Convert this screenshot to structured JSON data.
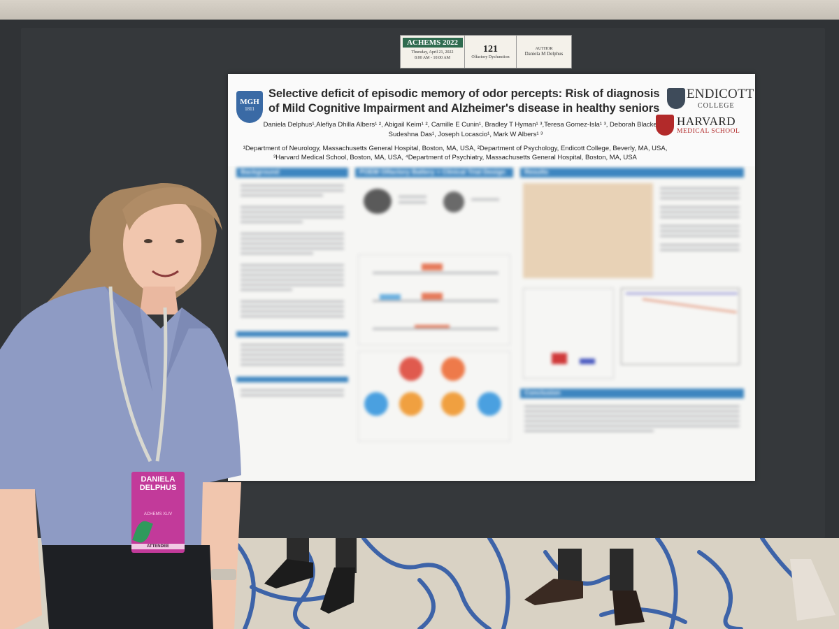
{
  "placard": {
    "conference": "ACHEMS 2022",
    "date": "Thursday, April 21, 2022",
    "time": "8:00 AM - 10:00 AM",
    "number": "121",
    "topic": "Olfactory Dysfunction",
    "author_label": "AUTHOR",
    "author": "Daniela M Delphus"
  },
  "poster": {
    "logo_left": {
      "line1": "MGH",
      "line2": "1811"
    },
    "title_line1": "Selective deficit of episodic memory of odor percepts: Risk of diagnosis",
    "title_line2": "of Mild Cognitive Impairment and Alzheimer's disease in healthy seniors",
    "authors_line1": "Daniela Delphus¹,Alefiya Dhilla Albers¹ ², Abigail Keim¹ ², Camille E Cunin¹, Bradley T Hyman¹ ³,Teresa Gomez-Isla¹ ³, Deborah Blacker³ ⁴,",
    "authors_line2": "Sudeshna Das¹, Joseph Locascio¹, Mark W Albers¹ ³",
    "affil_line1": "¹Department of Neurology, Massachusetts General Hospital, Boston, MA, USA, ²Department of Psychology, Endicott College, Beverly, MA, USA,",
    "affil_line2": "³Harvard Medical School, Boston, MA, USA, ⁴Department of Psychiatry, Massachusetts General Hospital, Boston, MA, USA",
    "logo_endicott_1": "ENDICOTT",
    "logo_endicott_2": "COLLEGE",
    "logo_harvard_1": "HARVARD",
    "logo_harvard_2": "MEDICAL SCHOOL",
    "sections": {
      "background": "Background",
      "design": "POEM Olfactory Battery + Clinical Trial Design",
      "results": "Results",
      "conclusion": "Conclusion"
    }
  },
  "badge": {
    "first": "DANIELA",
    "last": "DELPHUS",
    "event": "ACHEMS XLIV",
    "role": "ATTENDEE"
  },
  "colors": {
    "section_blue": "#3e86c0",
    "badge_pink": "#c23a9a",
    "placard_green": "#2f6b4f",
    "harvard_red": "#b22a2a",
    "shirt_blue": "#8e9bc4"
  }
}
